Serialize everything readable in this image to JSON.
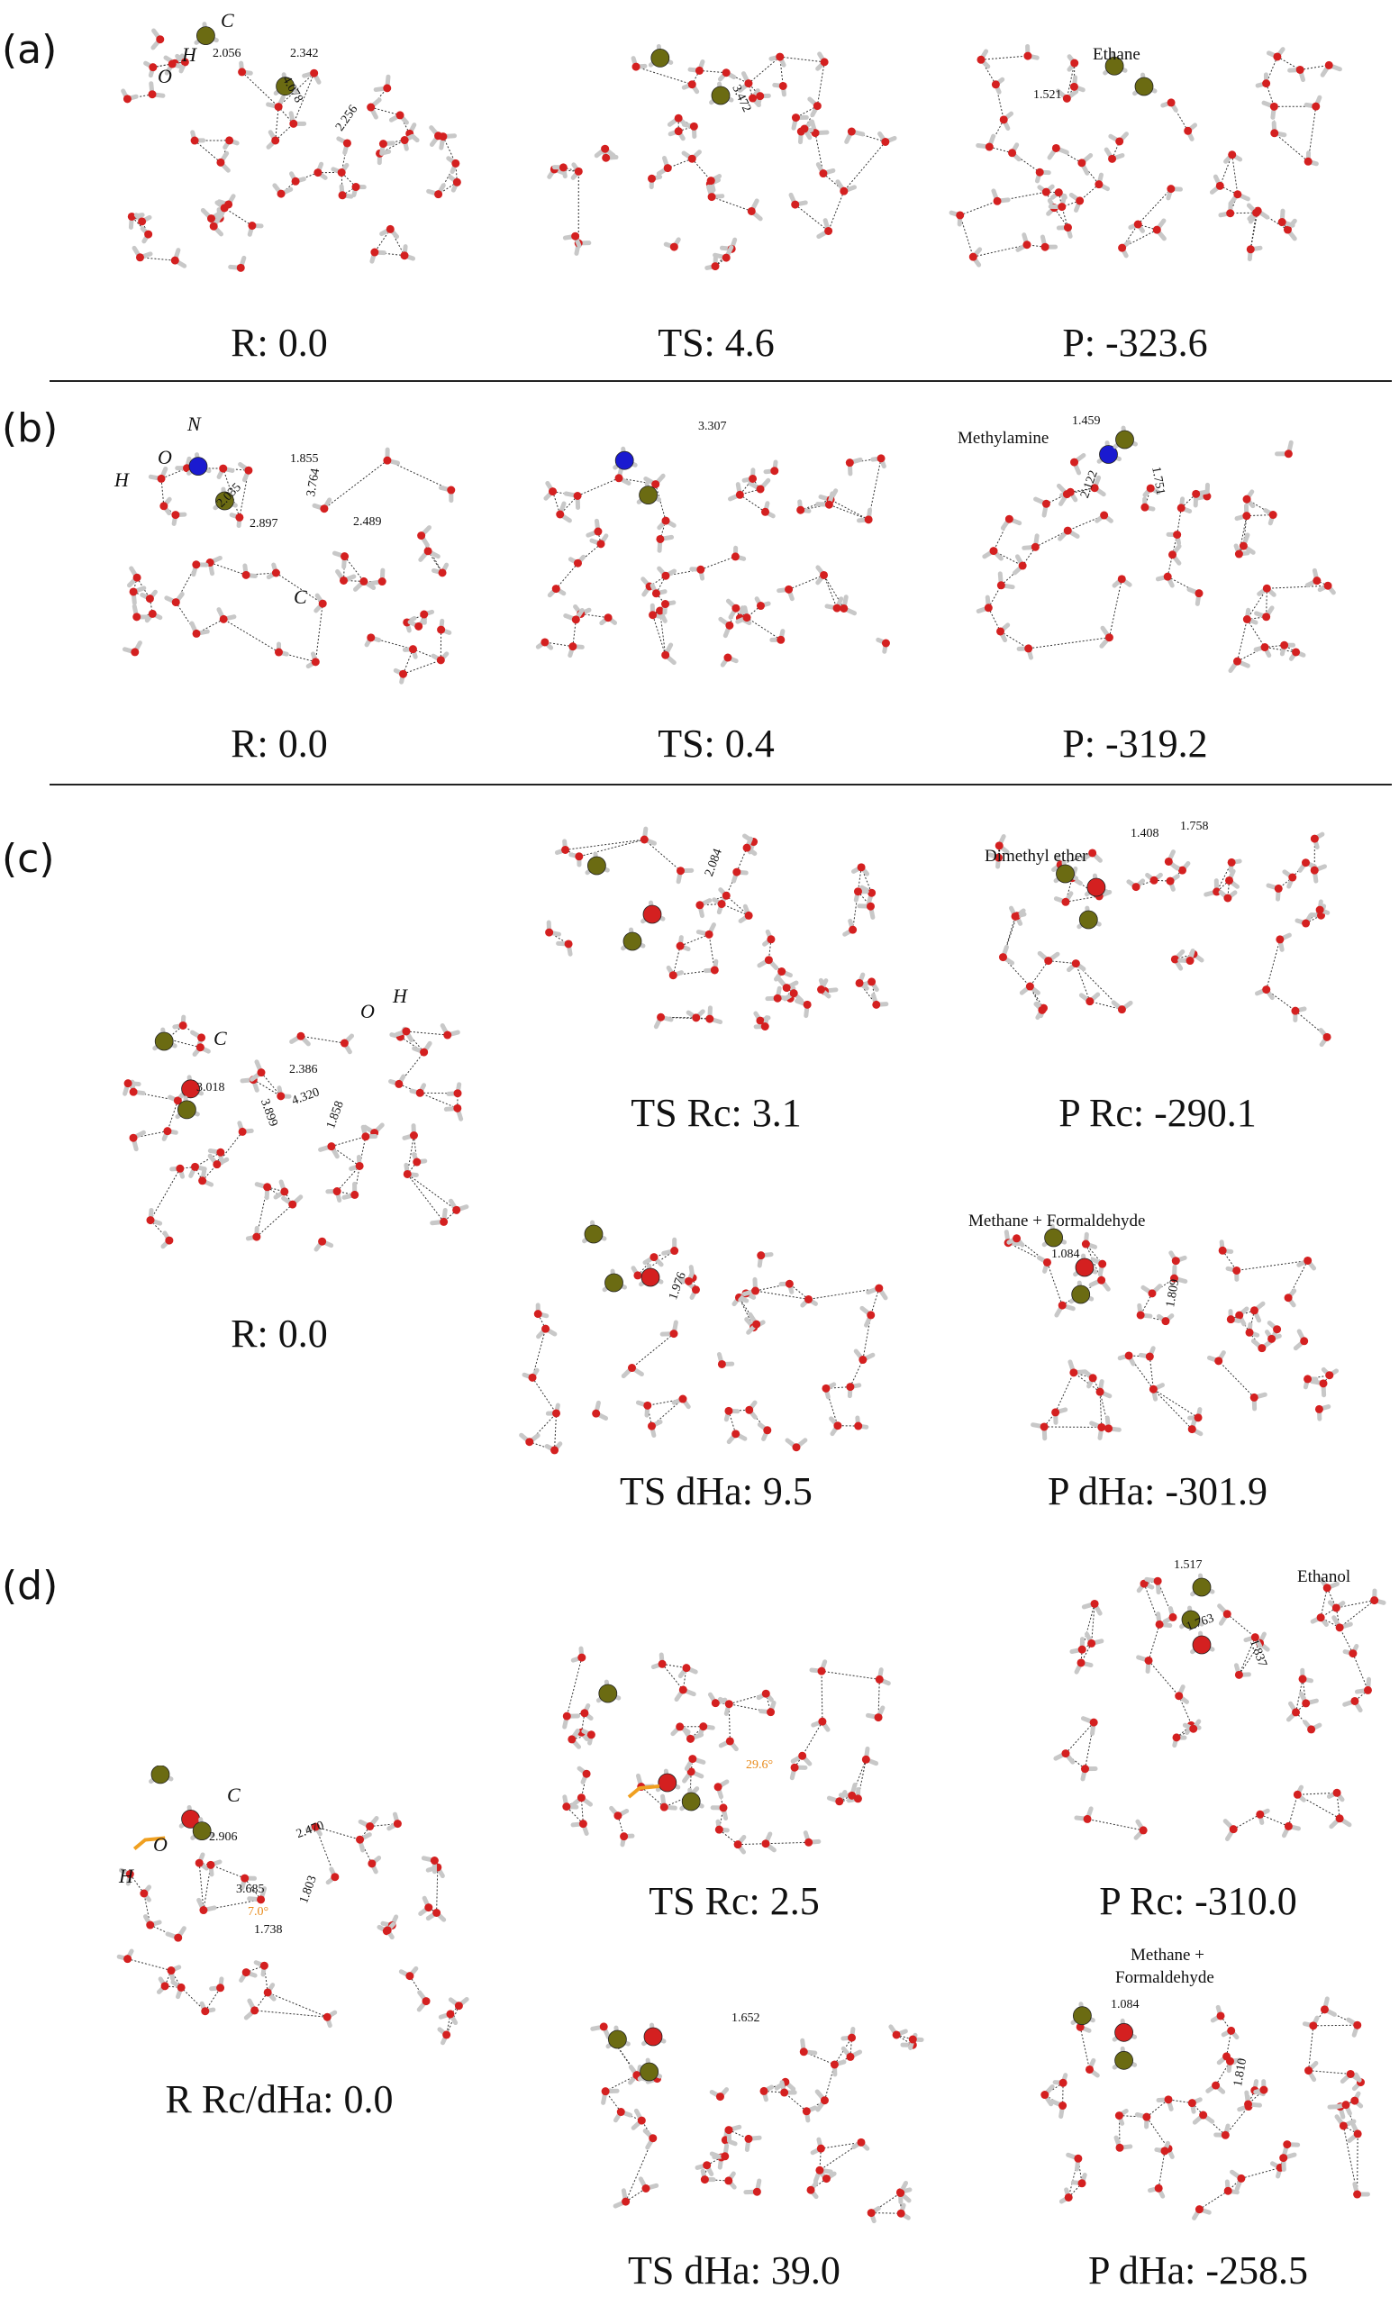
{
  "panels": {
    "a": {
      "tag": "(a)",
      "captions": [
        "R: 0.0",
        "TS: 4.6",
        "P: -323.6"
      ],
      "atoms": {
        "c": "C",
        "h": "H",
        "o": "O"
      },
      "distances": [
        "2.056",
        "2.342",
        "4.078",
        "2.256",
        "3.472",
        "1.521"
      ],
      "product_name": "Ethane"
    },
    "b": {
      "tag": "(b)",
      "captions": [
        "R: 0.0",
        "TS: 0.4",
        "P: -319.2"
      ],
      "atoms": {
        "n": "N",
        "h": "H",
        "o": "O",
        "c": "C"
      },
      "distances": [
        "2.035",
        "1.855",
        "3.764",
        "2.897",
        "2.489",
        "3.307",
        "1.459",
        "2.122",
        "1.751"
      ],
      "product_name": "Methylamine"
    },
    "c": {
      "tag": "(c)",
      "captions": [
        "R: 0.0",
        "TS Rc: 3.1",
        "P Rc: -290.1",
        "TS dHa: 9.5",
        "P dHa: -301.9"
      ],
      "atoms": {
        "c": "C",
        "o": "O",
        "h": "H"
      },
      "distances": [
        "3.018",
        "2.386",
        "4.320",
        "3.899",
        "1.858",
        "2.084",
        "1.408",
        "1.758",
        "1.976",
        "1.084",
        "1.809"
      ],
      "product_names": [
        "Dimethyl ether",
        "Methane + Formaldehyde"
      ]
    },
    "d": {
      "tag": "(d)",
      "captions": [
        "R Rc/dHa: 0.0",
        "TS Rc: 2.5",
        "P Rc: -310.0",
        "TS dHa: 39.0",
        "P dHa: -258.5"
      ],
      "atoms": {
        "c": "C",
        "o": "O",
        "h": "H"
      },
      "distances": [
        "2.906",
        "2.470",
        "3.685",
        "1.803",
        "7.0°",
        "1.738",
        "29.6°",
        "1.517",
        "1.763",
        "1.837",
        "1.652",
        "1.084",
        "1.810"
      ],
      "product_names": [
        "Ethanol",
        "Methane +",
        "Formaldehyde"
      ]
    }
  },
  "colors": {
    "oxygen": "#d42020",
    "hydrogen": "#c8c8c8",
    "carbon": "#6b6b12",
    "nitrogen": "#1a1ad0",
    "highlight": "#f0a020"
  }
}
